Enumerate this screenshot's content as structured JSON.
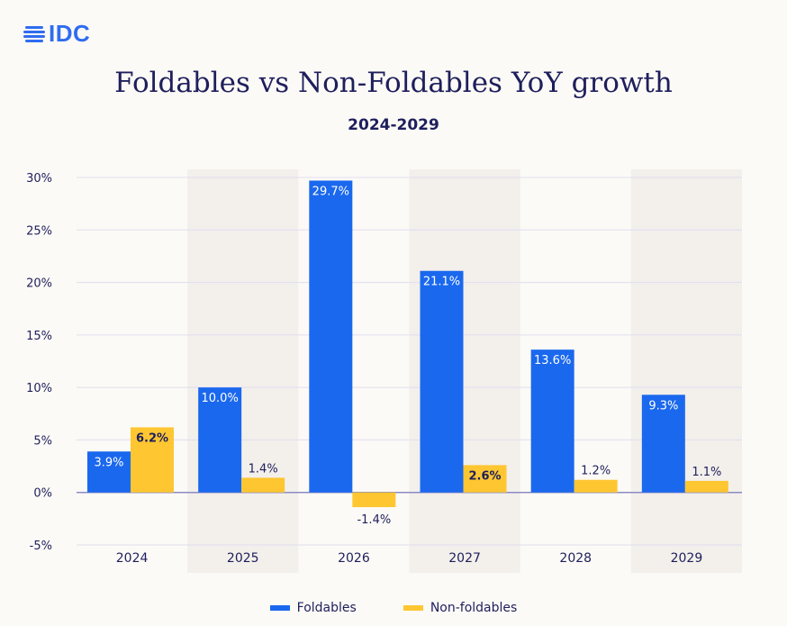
{
  "logo": {
    "text": "IDC"
  },
  "chart_data": {
    "type": "bar",
    "title": "Foldables vs Non-Foldables YoY growth",
    "subtitle": "2024-2029",
    "categories": [
      "2024",
      "2025",
      "2026",
      "2027",
      "2028",
      "2029"
    ],
    "series": [
      {
        "name": "Foldables",
        "color": "#1a68ee",
        "values": [
          3.9,
          10.0,
          29.7,
          21.1,
          13.6,
          9.3
        ],
        "labels": [
          "3.9%",
          "10.0%",
          "29.7%",
          "21.1%",
          "13.6%",
          "9.3%"
        ]
      },
      {
        "name": "Non-foldables",
        "color": "#fec631",
        "values": [
          6.2,
          1.4,
          -1.4,
          2.6,
          1.2,
          1.1
        ],
        "labels": [
          "6.2%",
          "1.4%",
          "-1.4%",
          "2.6%",
          "1.2%",
          "1.1%"
        ]
      }
    ],
    "ylim": [
      -5,
      30
    ],
    "yticks": [
      -5,
      0,
      5,
      10,
      15,
      20,
      25,
      30
    ],
    "ytick_labels": [
      "-5%",
      "0%",
      "5%",
      "10%",
      "15%",
      "20%",
      "25%",
      "30%"
    ],
    "xlabel": "",
    "ylabel": "",
    "legend_position": "bottom-center",
    "grid": true,
    "alternate_band_color": "#f3efeb"
  }
}
